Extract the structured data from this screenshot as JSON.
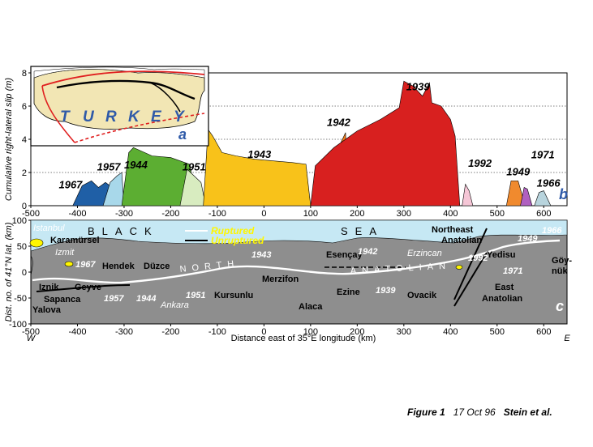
{
  "chart_data": [
    {
      "type": "area",
      "panel_label": "b",
      "ylabel": "Cumulative right-lateral slip (m)",
      "xlim": [
        -500,
        650
      ],
      "ylim": [
        0,
        8
      ],
      "y_ticks": [
        "0",
        "2",
        "4",
        "6",
        "8"
      ],
      "x_ticks": [
        "-500",
        "-400",
        "-300",
        "-200",
        "-100",
        "0",
        "100",
        "200",
        "300",
        "400",
        "500",
        "600"
      ],
      "gridlines_y": [
        2,
        4,
        6
      ],
      "series": [
        {
          "name": "1967",
          "color": "#1f5fa6",
          "x": [
            -410,
            -390,
            -370,
            -355,
            -340,
            -330,
            -325
          ],
          "y": [
            0,
            1.2,
            1.5,
            1.1,
            1.4,
            1.2,
            0
          ]
        },
        {
          "name": "1957",
          "color": "#a8d8ea",
          "x": [
            -345,
            -330,
            -315,
            -305,
            -300
          ],
          "y": [
            0,
            1.4,
            1.8,
            2.0,
            0
          ]
        },
        {
          "name": "1944",
          "color": "#5cae32",
          "x": [
            -305,
            -290,
            -280,
            -240,
            -200,
            -160,
            -140
          ],
          "y": [
            0,
            3.2,
            3.5,
            3.0,
            2.9,
            2.5,
            0
          ]
        },
        {
          "name": "1951",
          "color": "#d8ecc0",
          "x": [
            -180,
            -165,
            -150,
            -135,
            -125
          ],
          "y": [
            0,
            2.2,
            1.8,
            1.4,
            0
          ]
        },
        {
          "name": "1943",
          "color": "#f8c21a",
          "x": [
            -130,
            -120,
            -110,
            -90,
            -60,
            -20,
            20,
            60,
            90,
            100
          ],
          "y": [
            0,
            4.6,
            4.2,
            3.2,
            3.0,
            2.8,
            2.7,
            2.6,
            2.5,
            0
          ]
        },
        {
          "name": "1942",
          "color": "#f07e1c",
          "x": [
            160,
            165,
            175,
            180
          ],
          "y": [
            0,
            3.8,
            4.4,
            0
          ]
        },
        {
          "name": "1939",
          "color": "#d8201f",
          "x": [
            100,
            110,
            150,
            200,
            250,
            290,
            300,
            320,
            340,
            355,
            360,
            380,
            400,
            410,
            420
          ],
          "y": [
            0,
            2.4,
            3.5,
            4.5,
            5.2,
            5.9,
            7.5,
            7.2,
            6.6,
            7.4,
            6.2,
            6.0,
            5.2,
            4.2,
            0
          ]
        },
        {
          "name": "1992",
          "color": "#f5c6d6",
          "x": [
            425,
            432,
            440,
            448
          ],
          "y": [
            0,
            1.3,
            0.9,
            0
          ]
        },
        {
          "name": "1949",
          "color": "#f08a2e",
          "x": [
            520,
            530,
            545,
            560
          ],
          "y": [
            0,
            1.5,
            1.5,
            0
          ]
        },
        {
          "name": "1971",
          "color": "#b060c0",
          "x": [
            550,
            558,
            565,
            575
          ],
          "y": [
            0,
            1.1,
            1.0,
            0
          ]
        },
        {
          "name": "1966",
          "color": "#b8d4dd",
          "x": [
            580,
            590,
            600,
            615
          ],
          "y": [
            0,
            0.8,
            0.9,
            0
          ]
        }
      ],
      "year_labels": [
        {
          "text": "1967",
          "x": -440,
          "y": 1.05
        },
        {
          "text": "1957",
          "x": -358,
          "y": 2.12
        },
        {
          "text": "1944",
          "x": -300,
          "y": 2.25
        },
        {
          "text": "1951",
          "x": -175,
          "y": 2.12
        },
        {
          "text": "1943",
          "x": -35,
          "y": 2.88
        },
        {
          "text": "1942",
          "x": 135,
          "y": 4.8
        },
        {
          "text": "1939",
          "x": 305,
          "y": 6.95
        },
        {
          "text": "1992",
          "x": 438,
          "y": 2.35
        },
        {
          "text": "1949",
          "x": 520,
          "y": 1.82
        },
        {
          "text": "1971",
          "x": 573,
          "y": 2.85
        },
        {
          "text": "1966",
          "x": 585,
          "y": 1.15
        }
      ]
    },
    {
      "type": "map",
      "panel_label": "c",
      "ylabel": "Dist. no. of 41°N lat. (km)",
      "xlabel": "Distance east of 35°E longitude (km)",
      "xlim": [
        -500,
        650
      ],
      "ylim": [
        -100,
        100
      ],
      "x_ticks": [
        "-500",
        "-400",
        "-300",
        "-200",
        "-100",
        "0",
        "100",
        "200",
        "300",
        "400",
        "500",
        "600"
      ],
      "y_ticks": [
        "-100",
        "-50",
        "0",
        "50",
        "100"
      ],
      "west_label": "W",
      "east_label": "E",
      "sea_label": "BLACK SEA",
      "sea_word1": "BLACK",
      "sea_word2": "SEA",
      "fault_label": "NORTH ANATOLIAN",
      "fault_word1": "NORTH",
      "fault_word2": "ANATOLIAN",
      "legend": [
        {
          "label": "Ruptured",
          "color": "#ffffff",
          "text_color": "#fff600"
        },
        {
          "label": "Unruptured",
          "color": "#000000",
          "text_color": "#fff600"
        }
      ],
      "places_bold": [
        "Karamürsel",
        "Hendek",
        "Düzce",
        "Iznik",
        "Geyve",
        "Sapanca",
        "Yalova",
        "Kursunlu",
        "Merzifon",
        "Esençay",
        "Ezine",
        "Alaca",
        "Ovacik",
        "Northeast",
        "Anatolian",
        "Yedisu",
        "East",
        "Anatolian",
        "Göy-",
        "nük"
      ],
      "places_city": [
        "Istanbul",
        "Izmit",
        "Ankara",
        "Erzincan"
      ],
      "years": [
        "1967",
        "1957",
        "1944",
        "1951",
        "1943",
        "1942",
        "1939",
        "1992",
        "1949",
        "1971",
        "1966"
      ]
    },
    {
      "type": "inset_map",
      "panel_label": "a",
      "country_label": "TURKEY",
      "letters": [
        "T",
        "U",
        "R",
        "K",
        "E",
        "Y"
      ]
    }
  ],
  "caption": {
    "figure": "Figure 1",
    "date": "17 Oct 96",
    "authors": "Stein et al."
  },
  "colors": {
    "land": "#8e8e8e",
    "sea": "#c6e8f4",
    "inset_land": "#f2e6b4",
    "outline_red": "#e02020",
    "label_blue": "#2f5aa8",
    "city_yellow": "#fff600"
  }
}
